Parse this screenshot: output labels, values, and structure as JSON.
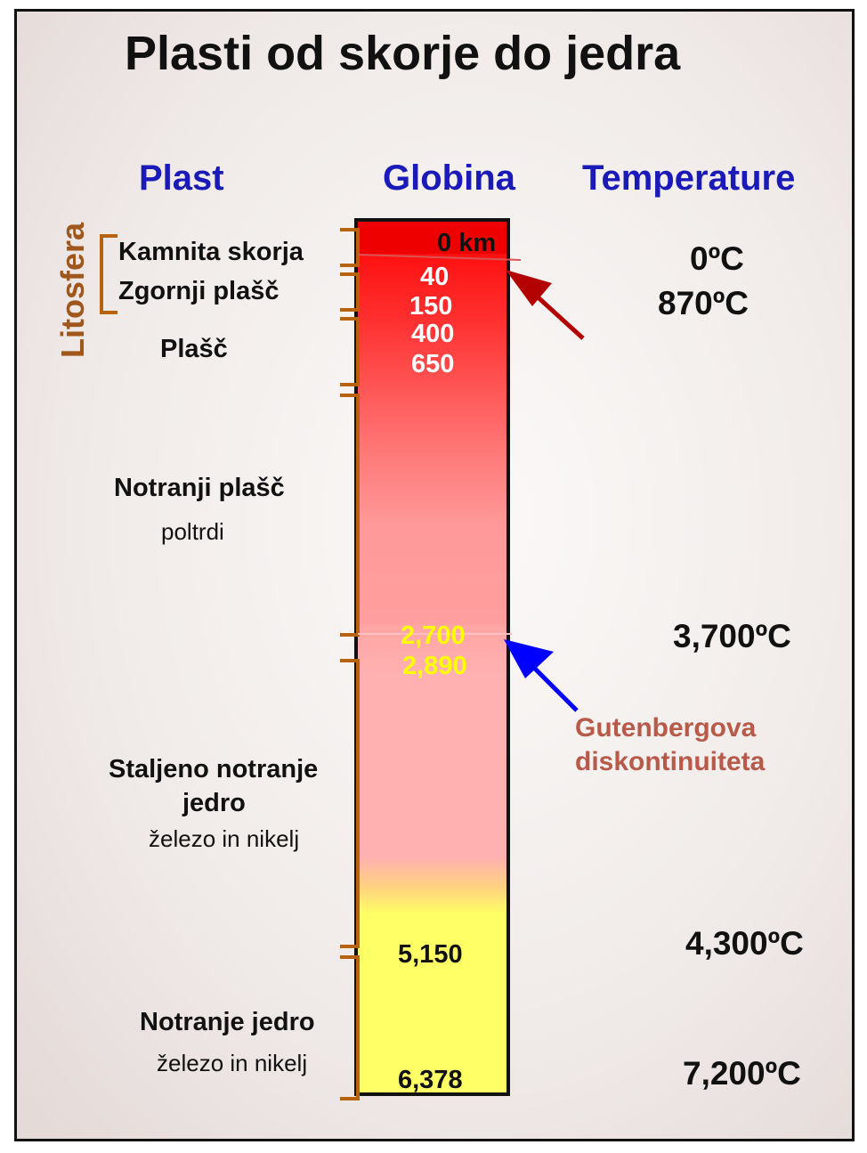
{
  "title": "Plasti od skorje do jedra",
  "headers": {
    "layer": "Plast",
    "depth": "Globina",
    "temperature": "Temperature"
  },
  "lithosphere_label": "Litosfera",
  "layers": {
    "crust": "Kamnita skorja",
    "upper_mantle": "Zgornji plašč",
    "mantle": "Plašč",
    "lower_mantle": {
      "name": "Notranji plašč",
      "state": "poltrdi"
    },
    "outer_core": {
      "name_line1": "Staljeno notranje",
      "name_line2": "jedro",
      "composition": "železo in nikelj"
    },
    "inner_core": {
      "name": "Notranje jedro",
      "composition": "železo in nikelj"
    }
  },
  "depths": [
    "0 km",
    "40",
    "150",
    "400",
    "650",
    "2,700",
    "2,890",
    "5,150",
    "6,378"
  ],
  "temperatures": [
    "0ºC",
    "870ºC",
    "3,700ºC",
    "4,300ºC",
    "7,200ºC"
  ],
  "gutenberg": {
    "line1": "Gutenbergova",
    "line2": "diskontinuiteta"
  },
  "colors": {
    "header": "#1a1ab8",
    "bracket": "#b8620f",
    "lithosphere": "#a0571c",
    "gutenberg_label": "#b85a4a",
    "arrow_red": "#b30000",
    "arrow_blue": "#0000ff",
    "depth_yellow": "#ffff00"
  }
}
